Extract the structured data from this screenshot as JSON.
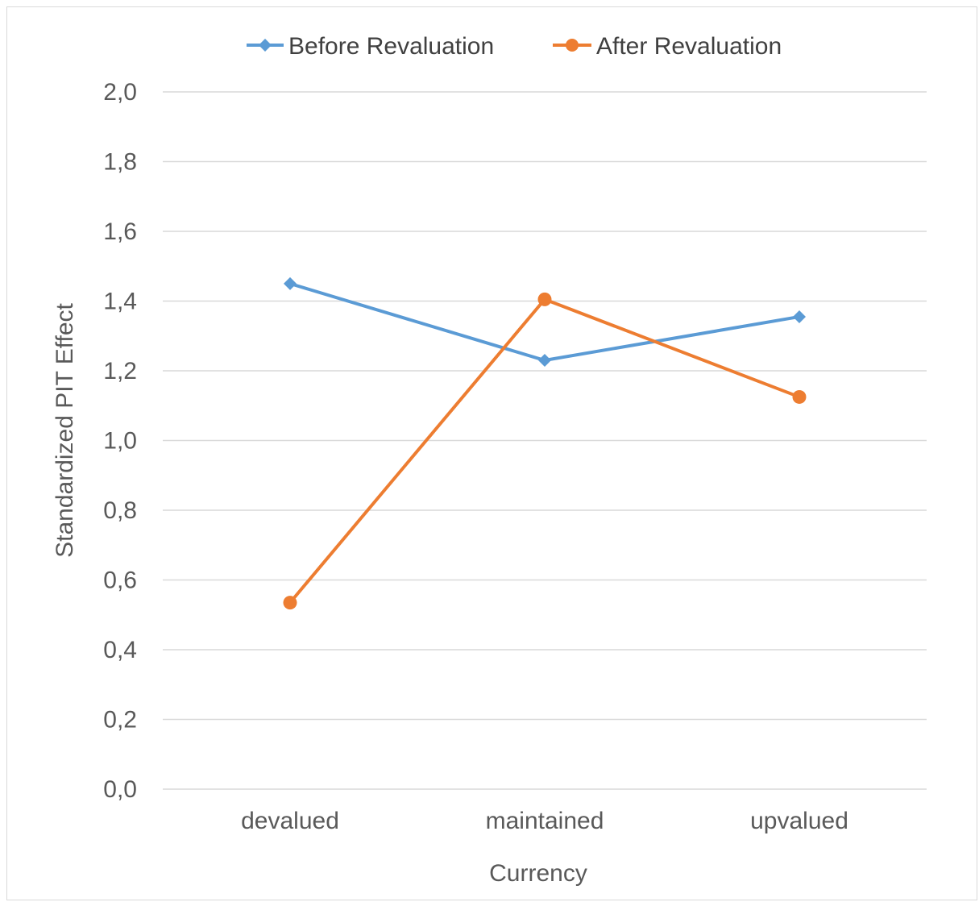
{
  "chart_data": {
    "type": "line",
    "categories": [
      "devalued",
      "maintained",
      "upvalued"
    ],
    "series": [
      {
        "name": "Before Revaluation",
        "values": [
          1.45,
          1.23,
          1.355
        ],
        "color": "#5b9bd5",
        "marker": "diamond"
      },
      {
        "name": "After Revaluation",
        "values": [
          0.535,
          1.405,
          1.125
        ],
        "color": "#ed7d31",
        "marker": "circle"
      }
    ],
    "xlabel": "Currency",
    "ylabel": "Standardized PIT Effect",
    "ylim": [
      0,
      2.0
    ],
    "yticks": [
      "0,0",
      "0,2",
      "0,4",
      "0,6",
      "0,8",
      "1,0",
      "1,2",
      "1,4",
      "1,6",
      "1,8",
      "2,0"
    ],
    "grid": true,
    "legend_position": "top"
  }
}
